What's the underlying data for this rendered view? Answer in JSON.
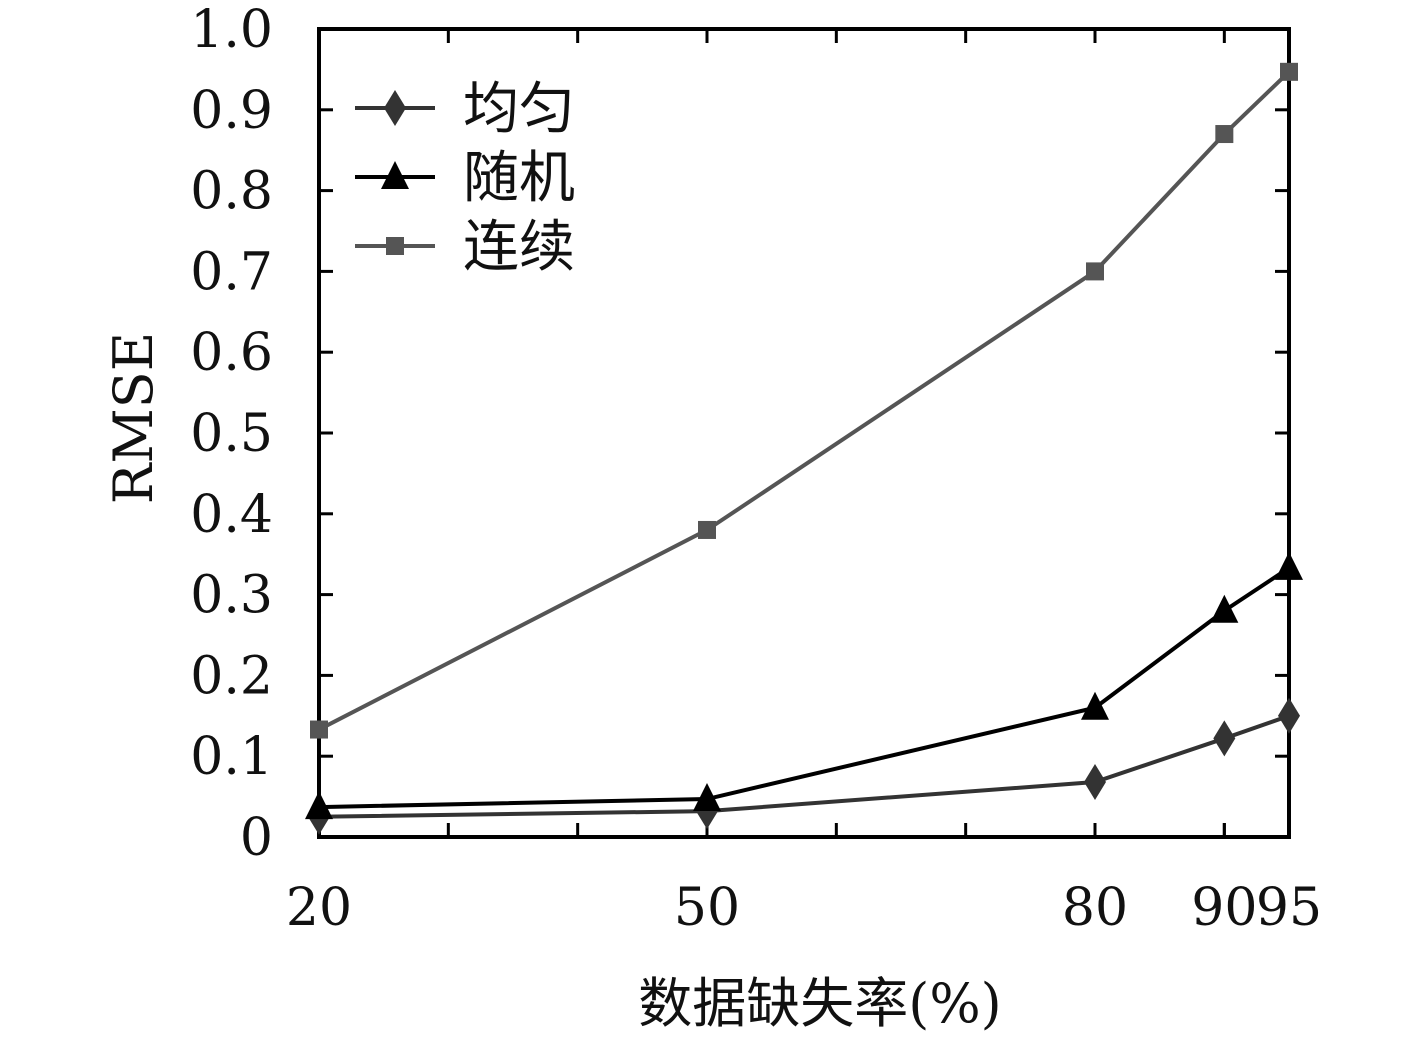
{
  "chart_data": {
    "type": "line",
    "title": "",
    "xlabel": "数据缺失率(%)",
    "ylabel": "RMSE",
    "x_ticks": [
      20,
      50,
      80,
      90,
      95
    ],
    "y_ticks": [
      "0",
      "0.1",
      "0.2",
      "0.3",
      "0.4",
      "0.5",
      "0.6",
      "0.7",
      "0.8",
      "0.9",
      "1.0"
    ],
    "xlim": [
      20,
      95
    ],
    "ylim": [
      0,
      1.0
    ],
    "grid": false,
    "legend_position": "top-left",
    "series": [
      {
        "name": "均匀",
        "marker": "diamond",
        "color": "#333333",
        "points": [
          [
            20,
            0.025
          ],
          [
            50,
            0.032
          ],
          [
            80,
            0.068
          ],
          [
            90,
            0.122
          ],
          [
            95,
            0.15
          ]
        ]
      },
      {
        "name": "随机",
        "marker": "triangle",
        "color": "#000000",
        "points": [
          [
            20,
            0.037
          ],
          [
            50,
            0.047
          ],
          [
            80,
            0.16
          ],
          [
            90,
            0.28
          ],
          [
            95,
            0.333
          ]
        ]
      },
      {
        "name": "连续",
        "marker": "square",
        "color": "#555555",
        "points": [
          [
            20,
            0.133
          ],
          [
            50,
            0.38
          ],
          [
            80,
            0.7
          ],
          [
            90,
            0.87
          ],
          [
            95,
            0.947
          ]
        ]
      }
    ]
  }
}
